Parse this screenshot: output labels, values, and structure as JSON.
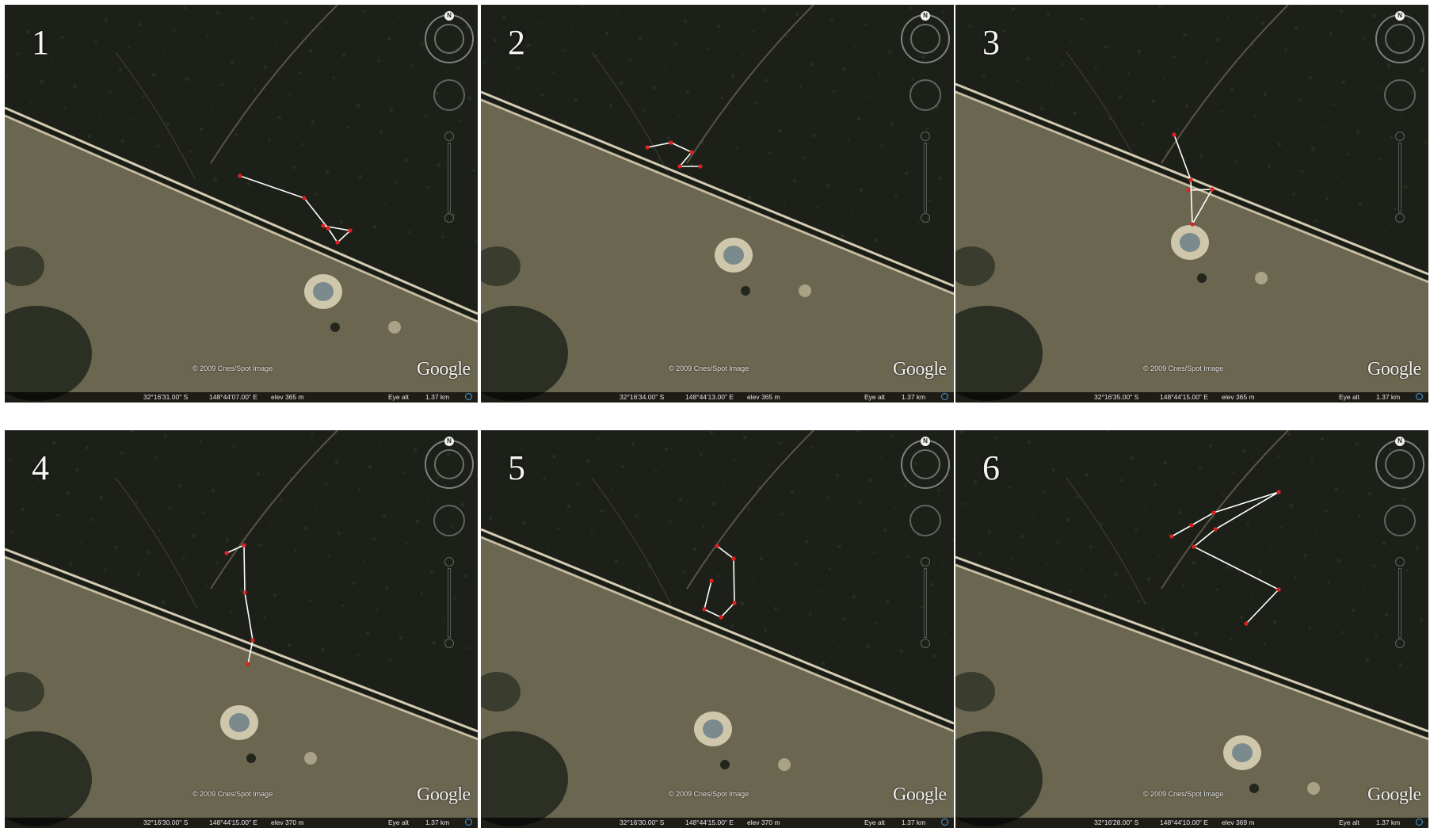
{
  "panels": [
    {
      "number": "1",
      "copyright": "© 2009 Cnes/Spot Image",
      "logo": "Google",
      "lat": "32°16'31.00\" S",
      "lon": "148°44'07.00\" E",
      "elev": "elev 365 m",
      "eye_alt_label": "Eye alt",
      "eye_alt_value": "1.37 km"
    },
    {
      "number": "2",
      "copyright": "© 2009 Cnes/Spot Image",
      "logo": "Google",
      "lat": "32°16'34.00\" S",
      "lon": "148°44'13.00\" E",
      "elev": "elev 365 m",
      "eye_alt_label": "Eye alt",
      "eye_alt_value": "1.37 km"
    },
    {
      "number": "3",
      "copyright": "© 2009 Cnes/Spot Image",
      "logo": "Google",
      "lat": "32°16'35.00\" S",
      "lon": "148°44'15.00\" E",
      "elev": "elev 365 m",
      "eye_alt_label": "Eye alt",
      "eye_alt_value": "1.37 km"
    },
    {
      "number": "4",
      "copyright": "© 2009 Cnes/Spot Image",
      "logo": "Google",
      "lat": "32°16'30.00\" S",
      "lon": "148°44'15.00\" E",
      "elev": "elev 370 m",
      "eye_alt_label": "Eye alt",
      "eye_alt_value": "1.37 km"
    },
    {
      "number": "5",
      "copyright": "© 2009 Cnes/Spot Image",
      "logo": "Google",
      "lat": "32°16'30.00\" S",
      "lon": "148°44'15.00\" E",
      "elev": "elev 370 m",
      "eye_alt_label": "Eye alt",
      "eye_alt_value": "1.37 km"
    },
    {
      "number": "6",
      "copyright": "© 2009 Cnes/Spot Image",
      "logo": "Google",
      "lat": "32°16'28.00\" S",
      "lon": "148°44'10.00\" E",
      "elev": "elev 369 m",
      "eye_alt_label": "Eye alt",
      "eye_alt_value": "1.37 km"
    }
  ],
  "nav": {
    "north_label": "N"
  },
  "colors": {
    "forest": "#1c2019",
    "paddock": "#6b6650",
    "road": "#e9dfc4",
    "track_line": "#ffffff",
    "track_point": "#e02020",
    "dam": "#cfc7ac"
  },
  "icons": [
    "compass-icon",
    "look-joystick-icon",
    "zoom-slider-icon",
    "globe-icon"
  ]
}
